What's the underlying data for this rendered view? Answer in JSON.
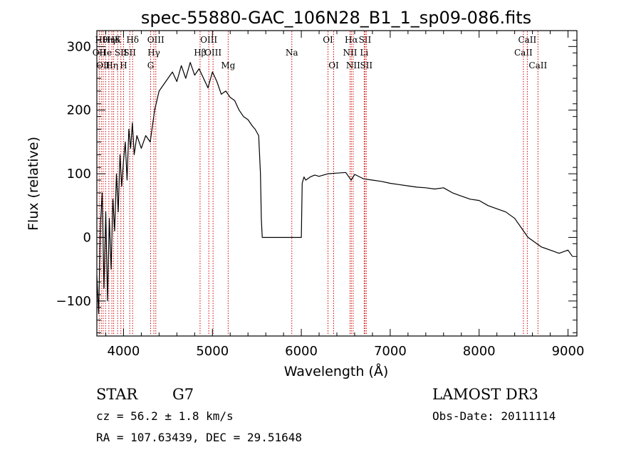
{
  "chart_data": {
    "type": "line",
    "title": "spec-55880-GAC_106N28_B1_1_sp09-086.fits",
    "xlabel": "Wavelength (Å)",
    "ylabel": "Flux (relative)",
    "xlim": [
      3700,
      9100
    ],
    "ylim": [
      -155,
      325
    ],
    "xticks": [
      4000,
      5000,
      6000,
      7000,
      8000,
      9000
    ],
    "yticks": [
      -100,
      0,
      100,
      200,
      300
    ],
    "grid": false,
    "line_color": "#000000",
    "marker_color": "#cc0000",
    "series": [
      {
        "x": [
          3700,
          3720,
          3740,
          3760,
          3780,
          3800,
          3820,
          3840,
          3860,
          3880,
          3900,
          3920,
          3940,
          3960,
          3980,
          4000,
          4020,
          4040,
          4060,
          4080,
          4100,
          4120,
          4150,
          4200,
          4250,
          4300,
          4350,
          4400,
          4450,
          4500,
          4550,
          4600,
          4650,
          4700,
          4750,
          4800,
          4850,
          4900,
          4950,
          5000,
          5050,
          5100,
          5150,
          5200,
          5250,
          5300,
          5350,
          5400,
          5450,
          5480,
          5520,
          5540,
          5550,
          5560,
          6000,
          6010,
          6030,
          6050,
          6100,
          6150,
          6200,
          6300,
          6400,
          6500,
          6560,
          6600,
          6700,
          6800,
          6900,
          7000,
          7100,
          7200,
          7300,
          7400,
          7500,
          7600,
          7700,
          7800,
          7900,
          8000,
          8100,
          8200,
          8300,
          8400,
          8500,
          8550,
          8600,
          8650,
          8700,
          8800,
          8900,
          9000,
          9050
        ],
        "values": [
          -60,
          -120,
          20,
          70,
          -80,
          40,
          -100,
          30,
          -50,
          60,
          10,
          100,
          40,
          130,
          80,
          120,
          150,
          90,
          170,
          140,
          180,
          130,
          160,
          140,
          160,
          150,
          200,
          230,
          240,
          250,
          260,
          245,
          270,
          250,
          275,
          255,
          265,
          250,
          235,
          260,
          245,
          225,
          230,
          220,
          215,
          200,
          190,
          185,
          175,
          170,
          160,
          100,
          30,
          0,
          0,
          85,
          95,
          90,
          95,
          98,
          96,
          100,
          101,
          102,
          90,
          99,
          92,
          90,
          88,
          85,
          83,
          81,
          79,
          78,
          76,
          78,
          70,
          65,
          60,
          58,
          50,
          45,
          40,
          30,
          10,
          0,
          -5,
          -10,
          -15,
          -20,
          -25,
          -20,
          -30
        ]
      }
    ],
    "line_markers": [
      {
        "x": 3727,
        "row": 1,
        "label": "OII"
      },
      {
        "x": 3750,
        "row": 0,
        "label": "Hθ"
      },
      {
        "x": 3771,
        "row": 2,
        "label": "OII"
      },
      {
        "x": 3798,
        "row": 1,
        "label": "He"
      },
      {
        "x": 3835,
        "row": 0,
        "label": "Hη"
      },
      {
        "x": 3869,
        "row": 2,
        "label": "Hη"
      },
      {
        "x": 3889,
        "row": 0,
        "label": "Hδ"
      },
      {
        "x": 3934,
        "row": 0,
        "label": "K"
      },
      {
        "x": 3970,
        "row": 1,
        "label": "SII"
      },
      {
        "x": 4000,
        "row": 2,
        "label": "H"
      },
      {
        "x": 4070,
        "row": 1,
        "label": "SII"
      },
      {
        "x": 4102,
        "row": 0,
        "label": "Hδ"
      },
      {
        "x": 4305,
        "row": 2,
        "label": "G"
      },
      {
        "x": 4341,
        "row": 1,
        "label": "Hγ"
      },
      {
        "x": 4363,
        "row": 0,
        "label": "OIII"
      },
      {
        "x": 4861,
        "row": 1,
        "label": "Hβ"
      },
      {
        "x": 4959,
        "row": 0,
        "label": "OIII"
      },
      {
        "x": 5007,
        "row": 1,
        "label": "OIII"
      },
      {
        "x": 5177,
        "row": 2,
        "label": "Mg"
      },
      {
        "x": 5893,
        "row": 1,
        "label": "Na"
      },
      {
        "x": 6300,
        "row": 0,
        "label": "OI"
      },
      {
        "x": 6364,
        "row": 2,
        "label": "OI"
      },
      {
        "x": 6548,
        "row": 1,
        "label": "NII"
      },
      {
        "x": 6563,
        "row": 0,
        "label": "Hα"
      },
      {
        "x": 6583,
        "row": 2,
        "label": "NII"
      },
      {
        "x": 6707,
        "row": 1,
        "label": "Li"
      },
      {
        "x": 6716,
        "row": 0,
        "label": "SII"
      },
      {
        "x": 6731,
        "row": 2,
        "label": "SII"
      },
      {
        "x": 8498,
        "row": 1,
        "label": "CaII"
      },
      {
        "x": 8542,
        "row": 0,
        "label": "CaII"
      },
      {
        "x": 8662,
        "row": 2,
        "label": "CaII"
      }
    ]
  },
  "info": {
    "class": "STAR",
    "subclass": "G7",
    "survey": "LAMOST DR3",
    "cz": "cz = 56.2 ± 1.8 km/s",
    "obs_date": "Obs-Date: 20111114",
    "radec": "RA = 107.63439, DEC =  29.51648"
  }
}
